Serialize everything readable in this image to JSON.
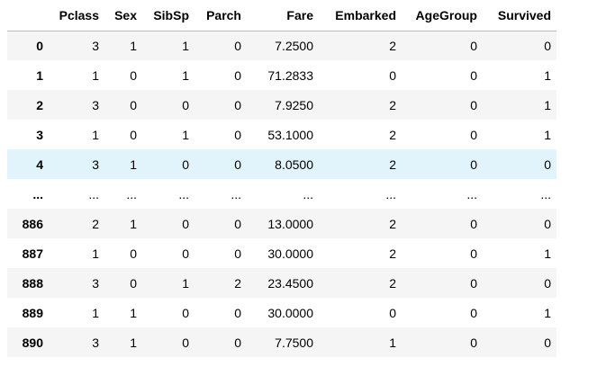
{
  "table": {
    "columns": [
      "",
      "Pclass",
      "Sex",
      "SibSp",
      "Parch",
      "Fare",
      "Embarked",
      "AgeGroup",
      "Survived"
    ],
    "rows": [
      {
        "index": "0",
        "cells": [
          "3",
          "1",
          "1",
          "0",
          "7.2500",
          "2",
          "0",
          "0"
        ]
      },
      {
        "index": "1",
        "cells": [
          "1",
          "0",
          "1",
          "0",
          "71.2833",
          "0",
          "0",
          "1"
        ]
      },
      {
        "index": "2",
        "cells": [
          "3",
          "0",
          "0",
          "0",
          "7.9250",
          "2",
          "0",
          "1"
        ]
      },
      {
        "index": "3",
        "cells": [
          "1",
          "0",
          "1",
          "0",
          "53.1000",
          "2",
          "0",
          "1"
        ]
      },
      {
        "index": "4",
        "cells": [
          "3",
          "1",
          "0",
          "0",
          "8.0500",
          "2",
          "0",
          "0"
        ]
      },
      {
        "index": "...",
        "cells": [
          "...",
          "...",
          "...",
          "...",
          "...",
          "...",
          "...",
          "..."
        ]
      },
      {
        "index": "886",
        "cells": [
          "2",
          "1",
          "0",
          "0",
          "13.0000",
          "2",
          "0",
          "0"
        ]
      },
      {
        "index": "887",
        "cells": [
          "1",
          "0",
          "0",
          "0",
          "30.0000",
          "2",
          "0",
          "1"
        ]
      },
      {
        "index": "888",
        "cells": [
          "3",
          "0",
          "1",
          "2",
          "23.4500",
          "2",
          "0",
          "0"
        ]
      },
      {
        "index": "889",
        "cells": [
          "1",
          "1",
          "0",
          "0",
          "30.0000",
          "0",
          "0",
          "1"
        ]
      },
      {
        "index": "890",
        "cells": [
          "3",
          "1",
          "0",
          "0",
          "7.7500",
          "1",
          "0",
          "0"
        ]
      }
    ],
    "highlighted_row": 4
  },
  "colors": {
    "stripe": "#f5f5f5",
    "hover": "#e1f3fb",
    "header_border": "#bdbdbd"
  }
}
